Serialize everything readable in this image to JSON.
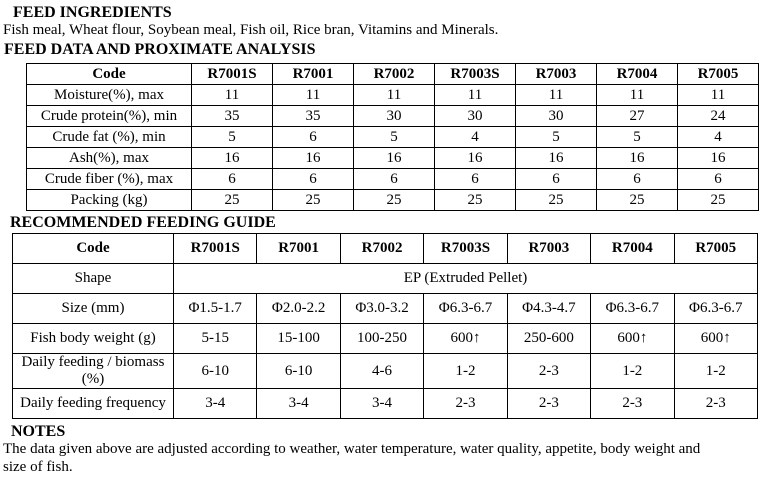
{
  "headings": {
    "ingredients": "FEED INGREDIENTS",
    "analysis": "FEED DATA AND PROXIMATE ANALYSIS",
    "feeding": "RECOMMENDED FEEDING GUIDE",
    "notes": "NOTES"
  },
  "ingredients_text": "Fish meal, Wheat flour, Soybean meal, Fish oil, Rice bran, Vitamins and Minerals.",
  "analysis_table": {
    "header": [
      "Code",
      "R7001S",
      "R7001",
      "R7002",
      "R7003S",
      "R7003",
      "R7004",
      "R7005"
    ],
    "rows": [
      {
        "label": "Moisture(%), max",
        "values": [
          "11",
          "11",
          "11",
          "11",
          "11",
          "11",
          "11"
        ]
      },
      {
        "label": "Crude protein(%), min",
        "values": [
          "35",
          "35",
          "30",
          "30",
          "30",
          "27",
          "24"
        ]
      },
      {
        "label": "Crude fat (%), min",
        "values": [
          "5",
          "6",
          "5",
          "4",
          "5",
          "5",
          "4"
        ]
      },
      {
        "label": "Ash(%), max",
        "values": [
          "16",
          "16",
          "16",
          "16",
          "16",
          "16",
          "16"
        ]
      },
      {
        "label": "Crude fiber (%), max",
        "values": [
          "6",
          "6",
          "6",
          "6",
          "6",
          "6",
          "6"
        ]
      },
      {
        "label": "Packing (kg)",
        "values": [
          "25",
          "25",
          "25",
          "25",
          "25",
          "25",
          "25"
        ]
      }
    ]
  },
  "feeding_table": {
    "header": [
      "Code",
      "R7001S",
      "R7001",
      "R7002",
      "R7003S",
      "R7003",
      "R7004",
      "R7005"
    ],
    "rows": [
      {
        "label": "Shape",
        "merged_value": "EP (Extruded Pellet)"
      },
      {
        "label": "Size (mm)",
        "values": [
          "Φ1.5-1.7",
          "Φ2.0-2.2",
          "Φ3.0-3.2",
          "Φ6.3-6.7",
          "Φ4.3-4.7",
          "Φ6.3-6.7",
          "Φ6.3-6.7"
        ]
      },
      {
        "label": "Fish body weight (g)",
        "values": [
          "5-15",
          "15-100",
          "100-250",
          "600↑",
          "250-600",
          "600↑",
          "600↑"
        ]
      },
      {
        "label": "Daily feeding / biomass (%)",
        "values": [
          "6-10",
          "6-10",
          "4-6",
          "1-2",
          "2-3",
          "1-2",
          "1-2"
        ]
      },
      {
        "label": "Daily feeding frequency",
        "values": [
          "3-4",
          "3-4",
          "3-4",
          "2-3",
          "2-3",
          "2-3",
          "2-3"
        ]
      }
    ]
  },
  "notes_lines": {
    "0": "The data given above are adjusted according to weather, water temperature, water quality, appetite, body weight and",
    "1": "size of fish."
  }
}
